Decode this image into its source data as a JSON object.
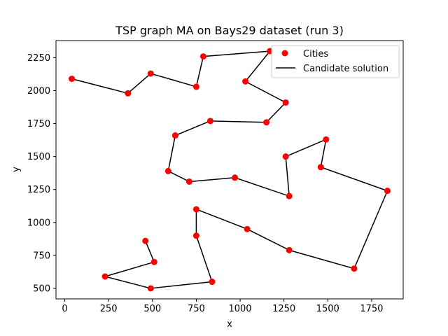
{
  "chart_data": {
    "type": "scatter",
    "title": "TSP graph MA on Bays29 dataset (run 3)",
    "xlabel": "x",
    "ylabel": "y",
    "xlim": [
      -50,
      1930
    ],
    "ylim": [
      420,
      2380
    ],
    "xticks": [
      0,
      250,
      500,
      750,
      1000,
      1250,
      1500,
      1750
    ],
    "yticks": [
      500,
      750,
      1000,
      1250,
      1500,
      1750,
      2000,
      2250
    ],
    "grid": false,
    "legend_position": "top-right",
    "colors": {
      "cities": "#ff0000",
      "route": "#000000",
      "axis": "#000000"
    },
    "series": [
      {
        "name": "Cities",
        "kind": "points",
        "points": [
          [
            40,
            2090
          ],
          [
            360,
            1980
          ],
          [
            490,
            2130
          ],
          [
            750,
            2030
          ],
          [
            790,
            2260
          ],
          [
            1170,
            2300
          ],
          [
            1030,
            2070
          ],
          [
            1260,
            1910
          ],
          [
            1150,
            1760
          ],
          [
            830,
            1770
          ],
          [
            630,
            1660
          ],
          [
            590,
            1390
          ],
          [
            710,
            1310
          ],
          [
            970,
            1340
          ],
          [
            1280,
            1200
          ],
          [
            1260,
            1500
          ],
          [
            1490,
            1630
          ],
          [
            1460,
            1420
          ],
          [
            1840,
            1240
          ],
          [
            1650,
            650
          ],
          [
            1280,
            790
          ],
          [
            1040,
            950
          ],
          [
            750,
            1100
          ],
          [
            750,
            900
          ],
          [
            840,
            550
          ],
          [
            490,
            500
          ],
          [
            230,
            590
          ],
          [
            510,
            700
          ],
          [
            460,
            860
          ]
        ]
      },
      {
        "name": "Candidate solution",
        "kind": "path",
        "points": [
          [
            40,
            2090
          ],
          [
            360,
            1980
          ],
          [
            490,
            2130
          ],
          [
            750,
            2030
          ],
          [
            790,
            2260
          ],
          [
            1170,
            2300
          ],
          [
            1030,
            2070
          ],
          [
            1260,
            1910
          ],
          [
            1150,
            1760
          ],
          [
            830,
            1770
          ],
          [
            630,
            1660
          ],
          [
            590,
            1390
          ],
          [
            710,
            1310
          ],
          [
            970,
            1340
          ],
          [
            1280,
            1200
          ],
          [
            1260,
            1500
          ],
          [
            1490,
            1630
          ],
          [
            1460,
            1420
          ],
          [
            1840,
            1240
          ],
          [
            1650,
            650
          ],
          [
            1280,
            790
          ],
          [
            1040,
            950
          ],
          [
            750,
            1100
          ],
          [
            750,
            900
          ],
          [
            840,
            550
          ],
          [
            490,
            500
          ],
          [
            230,
            590
          ],
          [
            510,
            700
          ],
          [
            460,
            860
          ]
        ]
      }
    ]
  }
}
